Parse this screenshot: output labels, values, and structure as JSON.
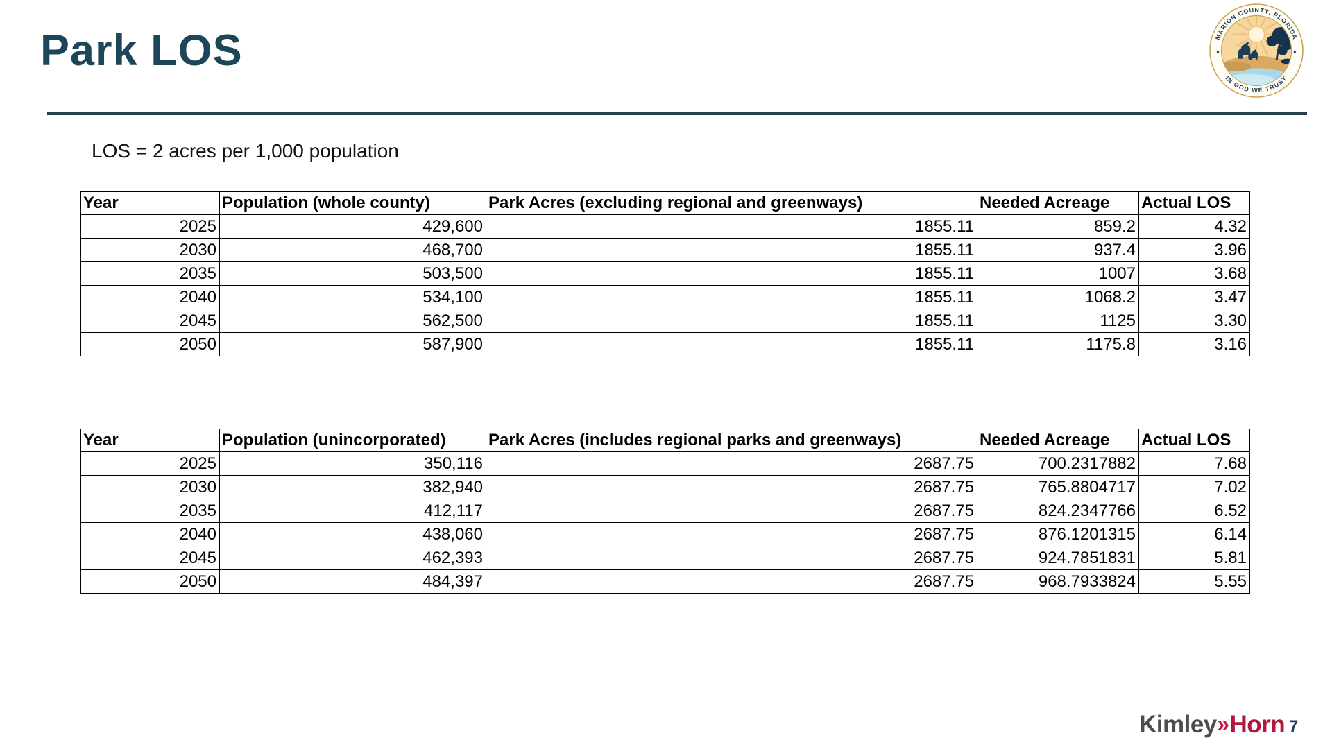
{
  "slide": {
    "title": "Park LOS",
    "subtitle": "LOS = 2 acres per 1,000 population",
    "page_number": "7"
  },
  "seal": {
    "text_top": "MARION COUNTY, FLORIDA",
    "text_bottom": "IN GOD WE TRUST"
  },
  "footer_logo": {
    "word1": "Kimley",
    "chevrons": "»",
    "word2": "Horn"
  },
  "colors": {
    "title": "#1d4659",
    "divider": "#24414c",
    "kimley_gray": "#4d4d4f",
    "horn_red": "#b2173c",
    "chevron_red": "#d01340",
    "page_number": "#1e3c5e",
    "seal_navy": "#1d3d58",
    "seal_gold": "#c9a255"
  },
  "table1": {
    "headers": [
      "Year",
      "Population (whole county)",
      "Park Acres (excluding regional and greenways)",
      "Needed Acreage",
      "Actual LOS"
    ],
    "rows": [
      [
        "2025",
        "429,600",
        "1855.11",
        "859.2",
        "4.32"
      ],
      [
        "2030",
        "468,700",
        "1855.11",
        "937.4",
        "3.96"
      ],
      [
        "2035",
        "503,500",
        "1855.11",
        "1007",
        "3.68"
      ],
      [
        "2040",
        "534,100",
        "1855.11",
        "1068.2",
        "3.47"
      ],
      [
        "2045",
        "562,500",
        "1855.11",
        "1125",
        "3.30"
      ],
      [
        "2050",
        "587,900",
        "1855.11",
        "1175.8",
        "3.16"
      ]
    ]
  },
  "table2": {
    "headers": [
      "Year",
      "Population (unincorporated)",
      "Park Acres (includes regional parks and greenways)",
      "Needed Acreage",
      "Actual LOS"
    ],
    "rows": [
      [
        "2025",
        "350,116",
        "2687.75",
        "700.2317882",
        "7.68"
      ],
      [
        "2030",
        "382,940",
        "2687.75",
        "765.8804717",
        "7.02"
      ],
      [
        "2035",
        "412,117",
        "2687.75",
        "824.2347766",
        "6.52"
      ],
      [
        "2040",
        "438,060",
        "2687.75",
        "876.1201315",
        "6.14"
      ],
      [
        "2045",
        "462,393",
        "2687.75",
        "924.7851831",
        "5.81"
      ],
      [
        "2050",
        "484,397",
        "2687.75",
        "968.7933824",
        "5.55"
      ]
    ]
  }
}
